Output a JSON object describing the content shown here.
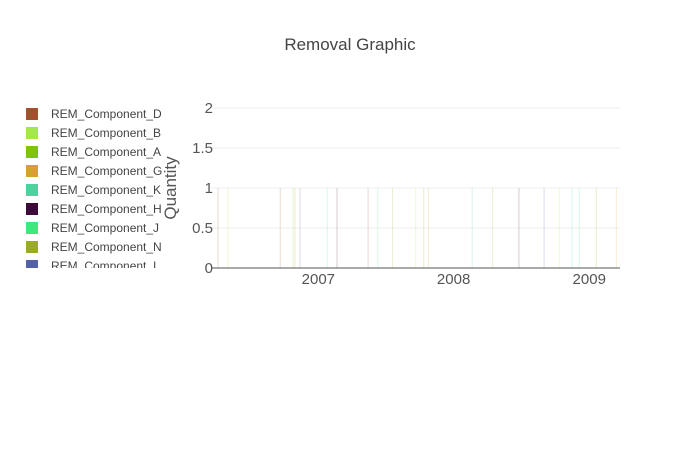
{
  "chart_data": {
    "type": "bar",
    "title": "Removal Graphic",
    "xlabel": "",
    "ylabel": "Quantity",
    "ylim": [
      0,
      2
    ],
    "yticks": [
      "0",
      "0.5",
      "1",
      "1.5",
      "2"
    ],
    "xlim": [
      "2006-03-20",
      "2009-03-25"
    ],
    "xticks": [
      {
        "label": "2007",
        "date": "2007-01-01"
      },
      {
        "label": "2008",
        "date": "2008-01-01"
      },
      {
        "label": "2009",
        "date": "2009-01-01"
      }
    ],
    "grid": true,
    "legend_placement": "left",
    "series": [
      {
        "name": "REM_Component_D",
        "color": "#a0522d",
        "x": [
          "2006-04-05",
          "2006-09-20",
          "2007-05-15"
        ],
        "values": [
          1,
          1,
          1
        ]
      },
      {
        "name": "REM_Component_B",
        "color": "#a5e84b",
        "x": [
          "2006-05-02",
          "2007-09-20",
          "2008-10-12"
        ],
        "values": [
          1,
          1,
          1
        ]
      },
      {
        "name": "REM_Component_A",
        "color": "#7ec40f",
        "x": [
          "2006-10-25",
          "2007-10-12",
          "2009-01-20"
        ],
        "values": [
          1,
          1,
          1
        ]
      },
      {
        "name": "REM_Component_G",
        "color": "#d7a12f",
        "x": [
          "2006-10-30",
          "2007-10-25",
          "2009-03-15"
        ],
        "values": [
          1,
          1,
          1
        ]
      },
      {
        "name": "REM_Component_K",
        "color": "#4dd29f",
        "x": [
          "2007-01-25",
          "2008-02-20",
          "2008-11-15"
        ],
        "values": [
          1,
          1,
          1
        ]
      },
      {
        "name": "REM_Component_H",
        "color": "#3d0b3a",
        "x": [
          "2007-02-20",
          "2008-06-25"
        ],
        "values": [
          1,
          1
        ]
      },
      {
        "name": "REM_Component_J",
        "color": "#3ee87e",
        "x": [
          "2007-06-10",
          "2008-12-05"
        ],
        "values": [
          1,
          1
        ]
      },
      {
        "name": "REM_Component_N",
        "color": "#9aaa2a",
        "x": [
          "2007-07-20",
          "2008-04-15"
        ],
        "values": [
          1,
          1
        ]
      },
      {
        "name": "REM_Component_I",
        "color": "#5460a8",
        "x": [
          "2006-11-12",
          "2008-09-01"
        ],
        "values": [
          1,
          1
        ]
      }
    ]
  }
}
